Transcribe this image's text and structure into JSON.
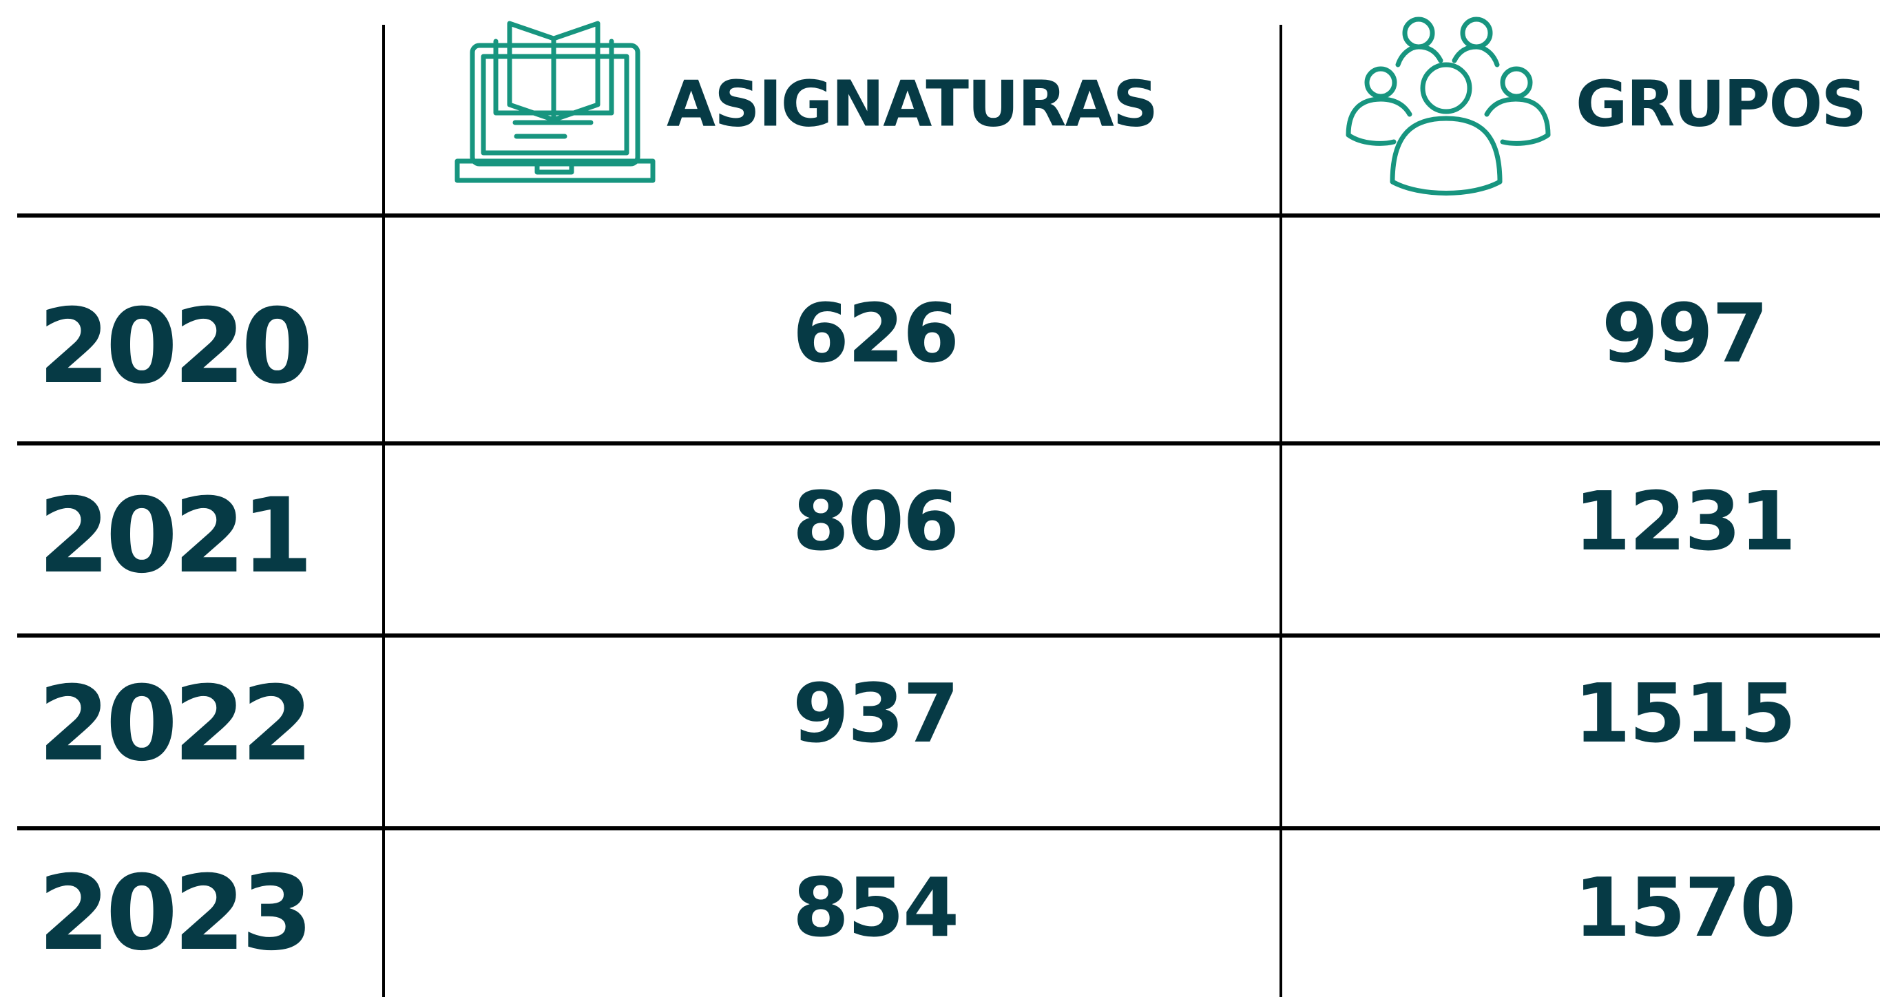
{
  "table": {
    "columns": [
      "ASIGNATURAS",
      "GRUPOS"
    ],
    "rows": [
      [
        "2020",
        "626",
        "997"
      ],
      [
        "2021",
        "806",
        "1231"
      ],
      [
        "2022",
        "937",
        "1515"
      ],
      [
        "2023",
        "854",
        "1570"
      ]
    ]
  }
}
